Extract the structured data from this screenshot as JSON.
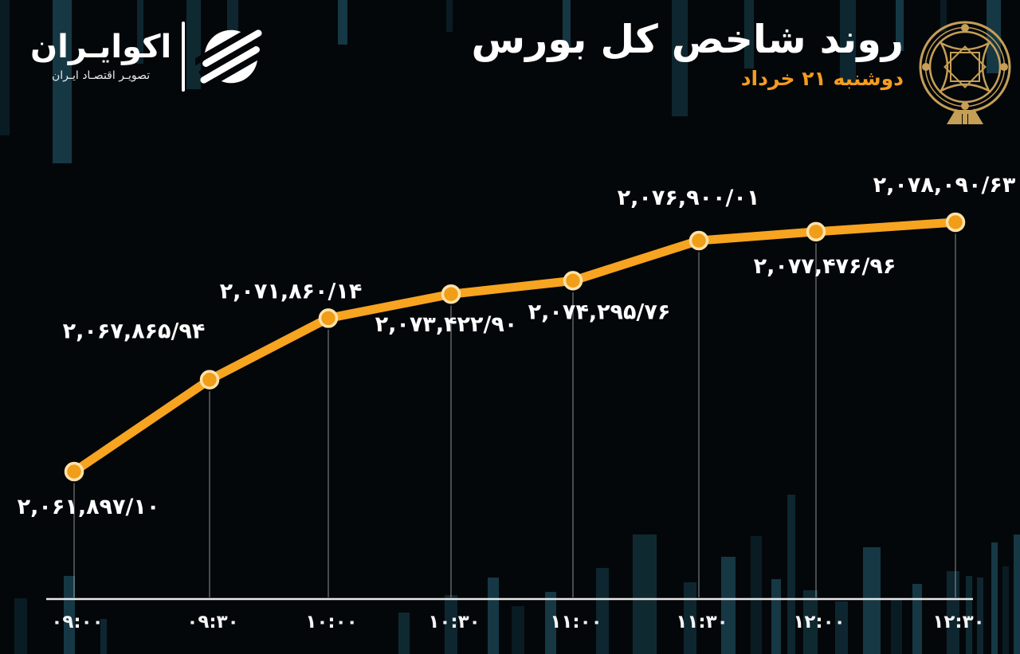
{
  "header": {
    "brand": {
      "name": "اکوایـران",
      "tagline": "تصویـر اقتصـاد ایـران",
      "logo_icon": "ecoiran-striped-globe-icon",
      "separator": "vertical-bar"
    },
    "title": "روند شاخص کل بورس",
    "date": "دوشنبه ۲۱ خرداد",
    "emblem_icon": "tehran-stock-exchange-gold-emblem-icon"
  },
  "colors": {
    "background": "#04070a",
    "line_orange": "#F7A420",
    "marker_fill": "#F09D18",
    "marker_ring": "#FFE2A8",
    "date_orange": "#F59C1E",
    "gold": "#C69F56",
    "axis_line": "#E8E8E8",
    "drop_line": "rgba(210,215,220,0.55)",
    "teal_bar_dark": "#112e38",
    "teal_bar_light": "#1a4552"
  },
  "chart_data": {
    "type": "line",
    "title": "روند شاخص کل بورس",
    "subtitle": "دوشنبه ۲۱ خرداد",
    "x": [
      "۰۹:۰۰",
      "۰۹:۳۰",
      "۱۰:۰۰",
      "۱۰:۳۰",
      "۱۱:۰۰",
      "۱۱:۳۰",
      "۱۲:۰۰",
      "۱۲:۳۰"
    ],
    "x_western": [
      "09:00",
      "09:30",
      "10:00",
      "10:30",
      "11:00",
      "11:30",
      "12:00",
      "12:30"
    ],
    "values": [
      2061897.1,
      2067865.94,
      2071860.14,
      2073422.9,
      2074295.76,
      2076900.01,
      2077476.96,
      2078090.63
    ],
    "point_labels": [
      "۲,۰۶۱,۸۹۷/۱۰",
      "۲,۰۶۷,۸۶۵/۹۴",
      "۲,۰۷۱,۸۶۰/۱۴",
      "۲,۰۷۳,۴۲۲/۹۰",
      "۲,۰۷۴,۲۹۵/۷۶",
      "۲,۰۷۶,۹۰۰/۰۱",
      "۲,۰۷۷,۴۷۶/۹۶",
      "۲,۰۷۸,۰۹۰/۶۳"
    ],
    "xlabel": "",
    "ylabel": "",
    "ylim": [
      2060000,
      2079500
    ],
    "grid": false,
    "legend": false,
    "line_color": "#F7A420",
    "label_positions": [
      "below",
      "above",
      "above",
      "below",
      "below",
      "above",
      "below",
      "above"
    ]
  }
}
